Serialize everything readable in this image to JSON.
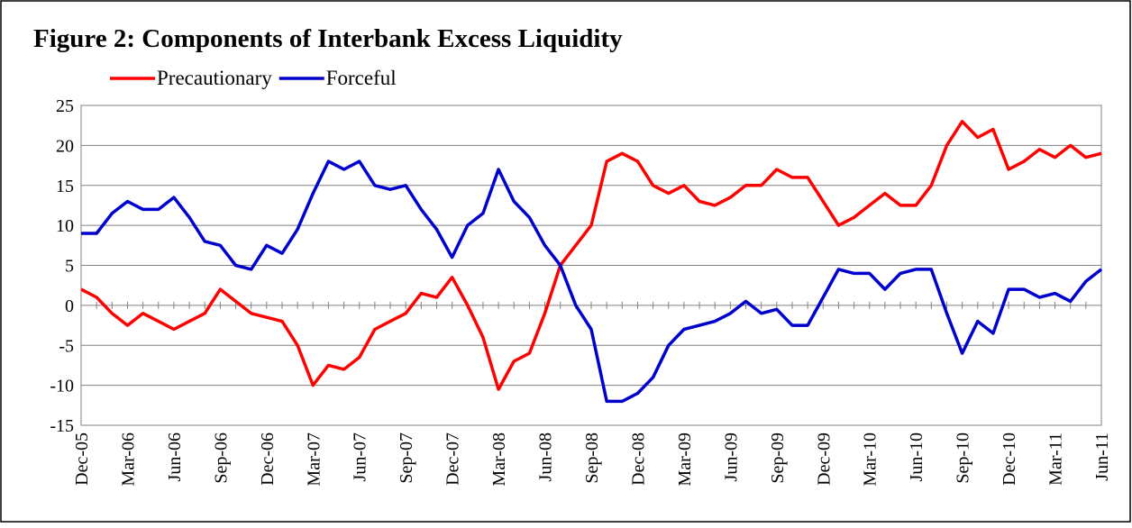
{
  "chart_data": {
    "type": "line",
    "title": "Figure 2: Components of Interbank Excess Liquidity",
    "categories": [
      "Dec-05",
      null,
      null,
      "Mar-06",
      null,
      null,
      "Jun-06",
      null,
      null,
      "Sep-06",
      null,
      null,
      "Dec-06",
      null,
      null,
      "Mar-07",
      null,
      null,
      "Jun-07",
      null,
      null,
      "Sep-07",
      null,
      null,
      "Dec-07",
      null,
      null,
      "Mar-08",
      null,
      null,
      "Jun-08",
      null,
      null,
      "Sep-08",
      null,
      null,
      "Dec-08",
      null,
      null,
      "Mar-09",
      null,
      null,
      "Jun-09",
      null,
      null,
      "Sep-09",
      null,
      null,
      "Dec-09",
      null,
      null,
      "Mar-10",
      null,
      null,
      "Jun-10",
      null,
      null,
      "Sep-10",
      null,
      null,
      "Dec-10",
      null,
      null,
      "Mar-11",
      null,
      null,
      "Jun-11"
    ],
    "series": [
      {
        "name": "Precautionary",
        "color": "#ff0000",
        "values": [
          2,
          1,
          -1,
          -2.5,
          -1,
          -2,
          -3,
          -2,
          -1,
          2,
          0.5,
          -1,
          -1.5,
          -2,
          -5,
          -10,
          -7.5,
          -8,
          -6.5,
          -3,
          -2,
          -1,
          1.5,
          1,
          3.5,
          0,
          -4,
          -10.5,
          -7,
          -6,
          -1,
          5,
          7.5,
          10,
          18,
          19,
          18,
          15,
          14,
          15,
          13,
          12.5,
          13.5,
          15,
          15,
          17,
          16,
          16,
          13,
          10,
          11,
          12.5,
          14,
          12.5,
          12.5,
          15,
          20,
          23,
          21,
          22,
          17,
          18,
          19.5,
          18.5,
          20,
          18.5,
          19
        ]
      },
      {
        "name": "Forceful",
        "color": "#0000cc",
        "values": [
          9,
          9,
          11.5,
          13,
          12,
          12,
          13.5,
          11,
          8,
          7.5,
          5,
          4.5,
          7.5,
          6.5,
          9.5,
          14,
          18,
          17,
          18,
          15,
          14.5,
          15,
          12,
          9.5,
          6,
          10,
          11.5,
          17,
          13,
          11,
          7.5,
          5,
          0,
          -3,
          -12,
          -12,
          -11,
          -9,
          -5,
          -3,
          -2.5,
          -2,
          -1,
          0.5,
          -1,
          -0.5,
          -2.5,
          -2.5,
          1,
          4.5,
          4,
          4,
          2,
          4,
          4.5,
          4.5,
          -1,
          -6,
          -2,
          -3.5,
          2,
          2,
          1,
          1.5,
          0.5,
          3,
          4.5
        ]
      }
    ],
    "ylim": [
      -15,
      25
    ],
    "yticks": [
      -15,
      -10,
      -5,
      0,
      5,
      10,
      15,
      20,
      25
    ],
    "grid": true
  }
}
